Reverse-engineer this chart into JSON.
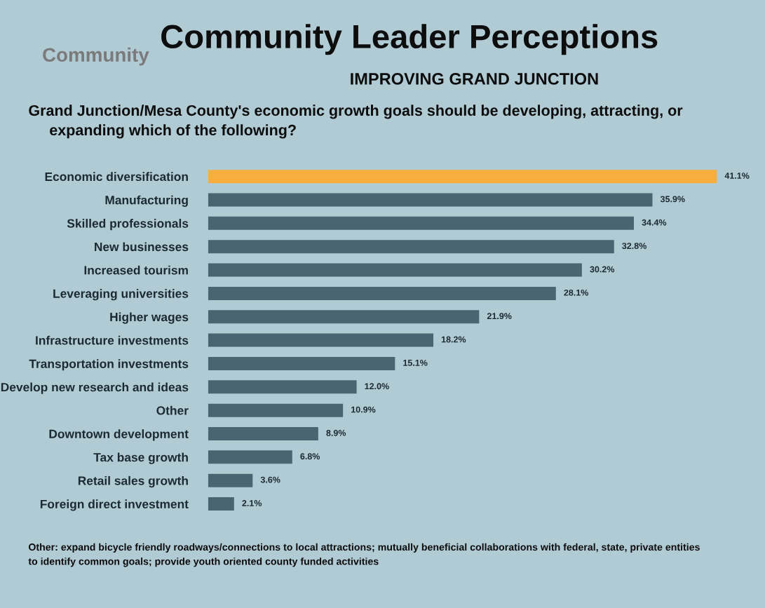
{
  "chart_data": {
    "type": "bar",
    "orientation": "horizontal",
    "title": "Community Leader Perceptions",
    "subtitle": "IMPROVING GRAND JUNCTION",
    "annotations": [
      "Community",
      "Grand Junction/Mesa County's economic growth goals should be developing, attracting, or\n     expanding which of the following?",
      "Other: expand bicycle friendly roadways/connections to local attractions; mutually beneficial collaborations with federal, state, private entities\nto identify common goals; provide youth oriented county funded activities"
    ],
    "categories": [
      "Economic diversification",
      "Manufacturing",
      "Skilled professionals",
      "New businesses",
      "Increased tourism",
      "Leveraging universities",
      "Higher wages",
      "Infrastructure investments",
      "Transportation investments",
      "Develop new research and ideas",
      "Other",
      "Downtown development",
      "Tax base growth",
      "Retail sales growth",
      "Foreign direct investment"
    ],
    "values": [
      41.1,
      35.9,
      34.4,
      32.8,
      30.2,
      28.1,
      21.9,
      18.2,
      15.1,
      12.0,
      10.9,
      8.9,
      6.8,
      3.6,
      2.1
    ],
    "value_labels": [
      "41.1%",
      "35.9%",
      "34.4%",
      "32.8%",
      "30.2%",
      "28.1%",
      "21.9%",
      "18.2%",
      "15.1%",
      "12.0%",
      "10.9%",
      "8.9%",
      "6.8%",
      "3.6%",
      "2.1%"
    ],
    "colors": [
      "#f7ae3d",
      "#4a6571",
      "#4a6571",
      "#4a6571",
      "#4a6571",
      "#4a6571",
      "#4a6571",
      "#4a6571",
      "#4a6571",
      "#4a6571",
      "#4a6571",
      "#4a6571",
      "#4a6571",
      "#4a6571",
      "#4a6571"
    ],
    "tick_labels": "y",
    "grid": false,
    "legend": false
  }
}
